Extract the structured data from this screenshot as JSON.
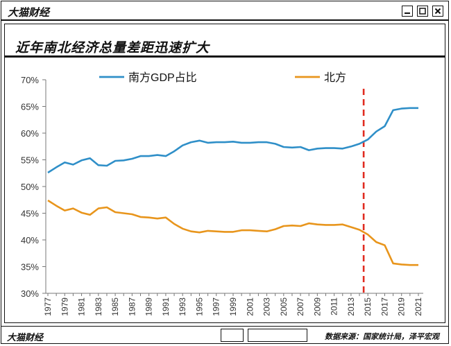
{
  "window": {
    "brand": "大猫财经",
    "buttons": [
      "minimize",
      "maximize",
      "close"
    ]
  },
  "heading": "近年南北经济总量差距迅速扩大",
  "footer": {
    "brand": "大猫财经",
    "source": "数据来源：国家统计局，泽平宏观"
  },
  "colors": {
    "south": "#2f8fc8",
    "north": "#e8951c",
    "marker": "#e02b20"
  },
  "chart_data": {
    "type": "line",
    "x": [
      1977,
      1978,
      1979,
      1980,
      1981,
      1982,
      1983,
      1984,
      1985,
      1986,
      1987,
      1988,
      1989,
      1990,
      1991,
      1992,
      1993,
      1994,
      1995,
      1996,
      1997,
      1998,
      1999,
      2000,
      2001,
      2002,
      2003,
      2004,
      2005,
      2006,
      2007,
      2008,
      2009,
      2010,
      2011,
      2012,
      2013,
      2014,
      2015,
      2016,
      2017,
      2018,
      2019,
      2020,
      2021
    ],
    "x_ticks": [
      1977,
      1979,
      1981,
      1983,
      1985,
      1987,
      1989,
      1991,
      1993,
      1995,
      1997,
      1999,
      2001,
      2003,
      2005,
      2007,
      2009,
      2011,
      2013,
      2015,
      2017,
      2019,
      2021
    ],
    "series": [
      {
        "name": "南方GDP占比",
        "color": "#2f8fc8",
        "values": [
          52.6,
          53.6,
          54.5,
          54.1,
          54.9,
          55.3,
          54.0,
          53.9,
          54.8,
          54.9,
          55.2,
          55.7,
          55.7,
          55.9,
          55.7,
          56.6,
          57.7,
          58.3,
          58.6,
          58.2,
          58.3,
          58.3,
          58.4,
          58.2,
          58.2,
          58.3,
          58.3,
          58.0,
          57.4,
          57.3,
          57.4,
          56.8,
          57.1,
          57.2,
          57.2,
          57.1,
          57.5,
          58.0,
          58.8,
          60.3,
          61.3,
          64.3,
          64.6,
          64.7,
          64.7
        ]
      },
      {
        "name": "北方",
        "color": "#e8951c",
        "values": [
          47.4,
          46.4,
          45.5,
          45.9,
          45.1,
          44.7,
          45.9,
          46.1,
          45.2,
          45.0,
          44.8,
          44.3,
          44.2,
          44.0,
          44.2,
          43.0,
          42.1,
          41.6,
          41.4,
          41.7,
          41.6,
          41.5,
          41.5,
          41.8,
          41.8,
          41.7,
          41.6,
          42.0,
          42.6,
          42.7,
          42.6,
          43.1,
          42.9,
          42.8,
          42.8,
          42.9,
          42.4,
          41.9,
          41.0,
          39.6,
          39.0,
          35.6,
          35.4,
          35.3,
          35.3
        ]
      }
    ],
    "y_ticks": [
      "30%",
      "35%",
      "40%",
      "45%",
      "50%",
      "55%",
      "60%",
      "65%",
      "70%"
    ],
    "ylim": [
      30,
      70
    ],
    "xlim": [
      1977,
      2021
    ],
    "marker_line": {
      "x": 2014.5,
      "style": "dashed"
    },
    "legend": "top"
  }
}
